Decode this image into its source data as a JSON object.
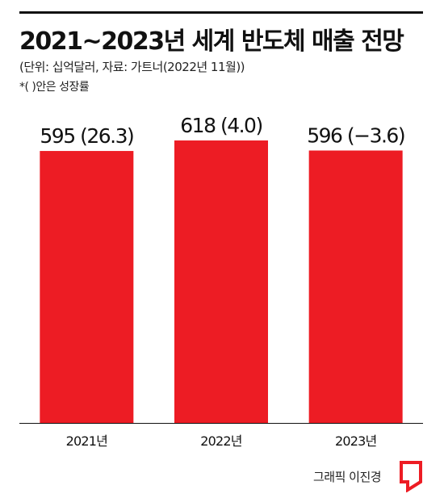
{
  "header": {
    "title": "2021~2023년 세계 반도체 매출 전망",
    "subtitle": "(단위: 십억달러, 자료: 가트너(2022년 11월))",
    "note": "*( )안은 성장률"
  },
  "chart_data": {
    "type": "bar",
    "categories": [
      "2021년",
      "2022년",
      "2023년"
    ],
    "values": [
      595,
      618,
      596
    ],
    "growth_rates": [
      26.3,
      4.0,
      -3.6
    ],
    "data_labels": [
      "595 (26.3)",
      "618 (4.0)",
      "596 (−3.6)"
    ],
    "title": "2021~2023년 세계 반도체 매출 전망",
    "xlabel": "",
    "ylabel": "",
    "ylim": [
      0,
      650
    ],
    "grid": false,
    "legend": "none",
    "bar_color": "#ed1c24",
    "axis_color": "#111111"
  },
  "footer": {
    "credit": "그래픽 이진경",
    "logo_icon": "red-square-logo-icon"
  }
}
